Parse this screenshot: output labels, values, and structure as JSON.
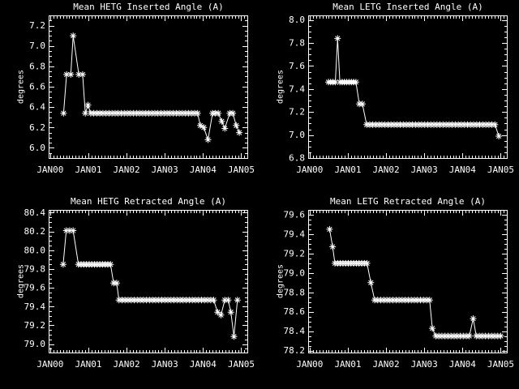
{
  "page": {
    "background": "#000000",
    "foreground": "#ffffff"
  },
  "chart_data": [
    {
      "type": "line",
      "title": "Mean HETG Inserted Angle (A)",
      "ylabel": "degrees",
      "marker": "asterisk",
      "color": "#ffffff",
      "grid": false,
      "legend": "none",
      "xlim": [
        1999.96,
        2005.16
      ],
      "ylim": [
        5.9,
        7.3
      ],
      "xticks": [
        2000,
        2001,
        2002,
        2003,
        2004,
        2005
      ],
      "xtick_labels": [
        "JAN00",
        "JAN01",
        "JAN02",
        "JAN03",
        "JAN04",
        "JAN05"
      ],
      "yticks": [
        6.0,
        6.2,
        6.4,
        6.6,
        6.8,
        7.0,
        7.2
      ],
      "ytick_labels": [
        "6.0",
        "6.2",
        "6.4",
        "6.6",
        "6.8",
        "7.0",
        "7.2"
      ],
      "x_minor_step": 0.08333,
      "y_minor_step": 0.05,
      "points": [
        [
          2000.35,
          6.34
        ],
        [
          2000.43,
          6.72
        ],
        [
          2000.54,
          6.72
        ],
        [
          2000.6,
          7.1
        ],
        [
          2000.75,
          6.72
        ],
        [
          2000.85,
          6.72
        ],
        [
          2000.92,
          6.34
        ],
        [
          2000.99,
          6.42
        ],
        [
          2001.06,
          6.34
        ],
        [
          2001.14,
          6.34
        ],
        [
          2001.22,
          6.34
        ],
        [
          2001.3,
          6.34
        ],
        [
          2001.38,
          6.34
        ],
        [
          2001.46,
          6.34
        ],
        [
          2001.54,
          6.34
        ],
        [
          2001.62,
          6.34
        ],
        [
          2001.7,
          6.34
        ],
        [
          2001.78,
          6.34
        ],
        [
          2001.86,
          6.34
        ],
        [
          2001.94,
          6.34
        ],
        [
          2002.02,
          6.34
        ],
        [
          2002.1,
          6.34
        ],
        [
          2002.18,
          6.34
        ],
        [
          2002.26,
          6.34
        ],
        [
          2002.34,
          6.34
        ],
        [
          2002.42,
          6.34
        ],
        [
          2002.5,
          6.34
        ],
        [
          2002.58,
          6.34
        ],
        [
          2002.66,
          6.34
        ],
        [
          2002.74,
          6.34
        ],
        [
          2002.82,
          6.34
        ],
        [
          2002.9,
          6.34
        ],
        [
          2002.98,
          6.34
        ],
        [
          2003.06,
          6.34
        ],
        [
          2003.14,
          6.34
        ],
        [
          2003.22,
          6.34
        ],
        [
          2003.3,
          6.34
        ],
        [
          2003.38,
          6.34
        ],
        [
          2003.46,
          6.34
        ],
        [
          2003.54,
          6.34
        ],
        [
          2003.62,
          6.34
        ],
        [
          2003.7,
          6.34
        ],
        [
          2003.78,
          6.34
        ],
        [
          2003.86,
          6.34
        ],
        [
          2003.93,
          6.22
        ],
        [
          2004.02,
          6.2
        ],
        [
          2004.13,
          6.08
        ],
        [
          2004.25,
          6.34
        ],
        [
          2004.32,
          6.34
        ],
        [
          2004.4,
          6.34
        ],
        [
          2004.49,
          6.26
        ],
        [
          2004.57,
          6.19
        ],
        [
          2004.7,
          6.34
        ],
        [
          2004.78,
          6.34
        ],
        [
          2004.87,
          6.22
        ],
        [
          2004.95,
          6.15
        ]
      ]
    },
    {
      "type": "line",
      "title": "Mean LETG Inserted Angle (A)",
      "ylabel": "degrees",
      "marker": "asterisk",
      "color": "#ffffff",
      "grid": false,
      "legend": "none",
      "xlim": [
        1999.96,
        2005.16
      ],
      "ylim": [
        6.8,
        8.04
      ],
      "xticks": [
        2000,
        2001,
        2002,
        2003,
        2004,
        2005
      ],
      "xtick_labels": [
        "JAN00",
        "JAN01",
        "JAN02",
        "JAN03",
        "JAN04",
        "JAN05"
      ],
      "yticks": [
        6.8,
        7.0,
        7.2,
        7.4,
        7.6,
        7.8,
        8.0
      ],
      "ytick_labels": [
        "6.8",
        "7.0",
        "7.2",
        "7.4",
        "7.6",
        "7.8",
        "8.0"
      ],
      "x_minor_step": 0.08333,
      "y_minor_step": 0.05,
      "points": [
        [
          2000.49,
          7.46
        ],
        [
          2000.55,
          7.46
        ],
        [
          2000.61,
          7.46
        ],
        [
          2000.67,
          7.46
        ],
        [
          2000.73,
          7.84
        ],
        [
          2000.79,
          7.46
        ],
        [
          2000.85,
          7.46
        ],
        [
          2000.91,
          7.46
        ],
        [
          2000.97,
          7.46
        ],
        [
          2001.03,
          7.46
        ],
        [
          2001.09,
          7.46
        ],
        [
          2001.15,
          7.46
        ],
        [
          2001.21,
          7.46
        ],
        [
          2001.3,
          7.27
        ],
        [
          2001.38,
          7.27
        ],
        [
          2001.49,
          7.09
        ],
        [
          2001.57,
          7.09
        ],
        [
          2001.65,
          7.09
        ],
        [
          2001.73,
          7.09
        ],
        [
          2001.81,
          7.09
        ],
        [
          2001.89,
          7.09
        ],
        [
          2001.97,
          7.09
        ],
        [
          2002.05,
          7.09
        ],
        [
          2002.13,
          7.09
        ],
        [
          2002.21,
          7.09
        ],
        [
          2002.29,
          7.09
        ],
        [
          2002.37,
          7.09
        ],
        [
          2002.45,
          7.09
        ],
        [
          2002.53,
          7.09
        ],
        [
          2002.61,
          7.09
        ],
        [
          2002.69,
          7.09
        ],
        [
          2002.77,
          7.09
        ],
        [
          2002.85,
          7.09
        ],
        [
          2002.93,
          7.09
        ],
        [
          2003.01,
          7.09
        ],
        [
          2003.09,
          7.09
        ],
        [
          2003.17,
          7.09
        ],
        [
          2003.25,
          7.09
        ],
        [
          2003.33,
          7.09
        ],
        [
          2003.41,
          7.09
        ],
        [
          2003.49,
          7.09
        ],
        [
          2003.57,
          7.09
        ],
        [
          2003.65,
          7.09
        ],
        [
          2003.73,
          7.09
        ],
        [
          2003.81,
          7.09
        ],
        [
          2003.89,
          7.09
        ],
        [
          2003.97,
          7.09
        ],
        [
          2004.05,
          7.09
        ],
        [
          2004.13,
          7.09
        ],
        [
          2004.21,
          7.09
        ],
        [
          2004.29,
          7.09
        ],
        [
          2004.37,
          7.09
        ],
        [
          2004.45,
          7.09
        ],
        [
          2004.53,
          7.09
        ],
        [
          2004.61,
          7.09
        ],
        [
          2004.69,
          7.09
        ],
        [
          2004.77,
          7.09
        ],
        [
          2004.85,
          7.09
        ],
        [
          2004.95,
          6.99
        ]
      ]
    },
    {
      "type": "line",
      "title": "Mean HETG Retracted Angle (A)",
      "ylabel": "degrees",
      "marker": "asterisk",
      "color": "#ffffff",
      "grid": false,
      "legend": "none",
      "xlim": [
        1999.96,
        2005.16
      ],
      "ylim": [
        78.91,
        80.43
      ],
      "xticks": [
        2000,
        2001,
        2002,
        2003,
        2004,
        2005
      ],
      "xtick_labels": [
        "JAN00",
        "JAN01",
        "JAN02",
        "JAN03",
        "JAN04",
        "JAN05"
      ],
      "yticks": [
        79.0,
        79.2,
        79.4,
        79.6,
        79.8,
        80.0,
        80.2,
        80.4
      ],
      "ytick_labels": [
        "79.0",
        "79.2",
        "79.4",
        "79.6",
        "79.8",
        "80.0",
        "80.2",
        "80.4"
      ],
      "x_minor_step": 0.08333,
      "y_minor_step": 0.05,
      "points": [
        [
          2000.34,
          79.85
        ],
        [
          2000.42,
          80.21
        ],
        [
          2000.51,
          80.21
        ],
        [
          2000.6,
          80.21
        ],
        [
          2000.74,
          79.85
        ],
        [
          2000.81,
          79.85
        ],
        [
          2000.88,
          79.85
        ],
        [
          2000.95,
          79.85
        ],
        [
          2001.02,
          79.85
        ],
        [
          2001.09,
          79.85
        ],
        [
          2001.16,
          79.85
        ],
        [
          2001.23,
          79.85
        ],
        [
          2001.3,
          79.85
        ],
        [
          2001.37,
          79.85
        ],
        [
          2001.44,
          79.85
        ],
        [
          2001.51,
          79.85
        ],
        [
          2001.58,
          79.85
        ],
        [
          2001.66,
          79.65
        ],
        [
          2001.74,
          79.65
        ],
        [
          2001.8,
          79.47
        ],
        [
          2001.88,
          79.47
        ],
        [
          2001.96,
          79.47
        ],
        [
          2002.04,
          79.47
        ],
        [
          2002.12,
          79.47
        ],
        [
          2002.2,
          79.47
        ],
        [
          2002.28,
          79.47
        ],
        [
          2002.36,
          79.47
        ],
        [
          2002.44,
          79.47
        ],
        [
          2002.52,
          79.47
        ],
        [
          2002.6,
          79.47
        ],
        [
          2002.68,
          79.47
        ],
        [
          2002.76,
          79.47
        ],
        [
          2002.84,
          79.47
        ],
        [
          2002.92,
          79.47
        ],
        [
          2003.0,
          79.47
        ],
        [
          2003.08,
          79.47
        ],
        [
          2003.16,
          79.47
        ],
        [
          2003.24,
          79.47
        ],
        [
          2003.32,
          79.47
        ],
        [
          2003.4,
          79.47
        ],
        [
          2003.48,
          79.47
        ],
        [
          2003.56,
          79.47
        ],
        [
          2003.64,
          79.47
        ],
        [
          2003.72,
          79.47
        ],
        [
          2003.8,
          79.47
        ],
        [
          2003.88,
          79.47
        ],
        [
          2003.96,
          79.47
        ],
        [
          2004.04,
          79.47
        ],
        [
          2004.12,
          79.47
        ],
        [
          2004.2,
          79.47
        ],
        [
          2004.28,
          79.47
        ],
        [
          2004.38,
          79.34
        ],
        [
          2004.47,
          79.31
        ],
        [
          2004.57,
          79.47
        ],
        [
          2004.66,
          79.47
        ],
        [
          2004.73,
          79.34
        ],
        [
          2004.81,
          79.08
        ],
        [
          2004.9,
          79.47
        ]
      ]
    },
    {
      "type": "line",
      "title": "Mean LETG Retracted Angle (A)",
      "ylabel": "degrees",
      "marker": "asterisk",
      "color": "#ffffff",
      "grid": false,
      "legend": "none",
      "xlim": [
        1999.96,
        2005.16
      ],
      "ylim": [
        78.18,
        79.65
      ],
      "xticks": [
        2000,
        2001,
        2002,
        2003,
        2004,
        2005
      ],
      "xtick_labels": [
        "JAN00",
        "JAN01",
        "JAN02",
        "JAN03",
        "JAN04",
        "JAN05"
      ],
      "yticks": [
        78.2,
        78.4,
        78.6,
        78.8,
        79.0,
        79.2,
        79.4,
        79.6
      ],
      "ytick_labels": [
        "78.2",
        "78.4",
        "78.6",
        "78.8",
        "79.0",
        "79.2",
        "79.4",
        "79.6"
      ],
      "x_minor_step": 0.08333,
      "y_minor_step": 0.05,
      "points": [
        [
          2000.52,
          79.45
        ],
        [
          2000.6,
          79.27
        ],
        [
          2000.66,
          79.1
        ],
        [
          2000.73,
          79.1
        ],
        [
          2000.8,
          79.1
        ],
        [
          2000.87,
          79.1
        ],
        [
          2000.94,
          79.1
        ],
        [
          2001.01,
          79.1
        ],
        [
          2001.08,
          79.1
        ],
        [
          2001.15,
          79.1
        ],
        [
          2001.22,
          79.1
        ],
        [
          2001.29,
          79.1
        ],
        [
          2001.36,
          79.1
        ],
        [
          2001.43,
          79.1
        ],
        [
          2001.5,
          79.1
        ],
        [
          2001.6,
          78.9
        ],
        [
          2001.7,
          78.72
        ],
        [
          2001.78,
          78.72
        ],
        [
          2001.86,
          78.72
        ],
        [
          2001.94,
          78.72
        ],
        [
          2002.02,
          78.72
        ],
        [
          2002.1,
          78.72
        ],
        [
          2002.18,
          78.72
        ],
        [
          2002.26,
          78.72
        ],
        [
          2002.34,
          78.72
        ],
        [
          2002.42,
          78.72
        ],
        [
          2002.5,
          78.72
        ],
        [
          2002.58,
          78.72
        ],
        [
          2002.66,
          78.72
        ],
        [
          2002.74,
          78.72
        ],
        [
          2002.82,
          78.72
        ],
        [
          2002.9,
          78.72
        ],
        [
          2002.98,
          78.72
        ],
        [
          2003.06,
          78.72
        ],
        [
          2003.14,
          78.72
        ],
        [
          2003.21,
          78.43
        ],
        [
          2003.3,
          78.35
        ],
        [
          2003.38,
          78.35
        ],
        [
          2003.46,
          78.35
        ],
        [
          2003.54,
          78.35
        ],
        [
          2003.62,
          78.35
        ],
        [
          2003.7,
          78.35
        ],
        [
          2003.78,
          78.35
        ],
        [
          2003.86,
          78.35
        ],
        [
          2003.94,
          78.35
        ],
        [
          2004.02,
          78.35
        ],
        [
          2004.1,
          78.35
        ],
        [
          2004.18,
          78.35
        ],
        [
          2004.28,
          78.53
        ],
        [
          2004.36,
          78.35
        ],
        [
          2004.44,
          78.35
        ],
        [
          2004.52,
          78.35
        ],
        [
          2004.6,
          78.35
        ],
        [
          2004.68,
          78.35
        ],
        [
          2004.76,
          78.35
        ],
        [
          2004.84,
          78.35
        ],
        [
          2004.92,
          78.35
        ],
        [
          2005.0,
          78.35
        ]
      ]
    }
  ]
}
